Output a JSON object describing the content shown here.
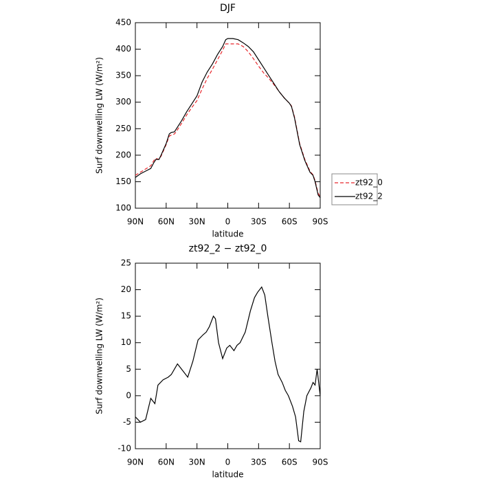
{
  "chart_data": [
    {
      "type": "line",
      "title": "DJF",
      "xlabel": "latitude",
      "ylabel": "Surf downwelling LW (W/m²)",
      "x": [
        90,
        85,
        80,
        75,
        72,
        70,
        67,
        65,
        60,
        57,
        55,
        52,
        50,
        45,
        40,
        35,
        30,
        25,
        20,
        15,
        10,
        5,
        2,
        0,
        -5,
        -10,
        -15,
        -20,
        -25,
        -30,
        -35,
        -40,
        -45,
        -50,
        -55,
        -60,
        -62,
        -65,
        -70,
        -75,
        -80,
        -83,
        -85,
        -88,
        -90
      ],
      "series": [
        {
          "name": "zt92_0",
          "color": "#e8262b",
          "linestyle": "dashed",
          "values": [
            162,
            168,
            174,
            180,
            190,
            194,
            192,
            198,
            220,
            236,
            238,
            240,
            245,
            260,
            276,
            290,
            303,
            325,
            345,
            362,
            380,
            398,
            410,
            410,
            410,
            410,
            405,
            395,
            382,
            368,
            355,
            345,
            333,
            320,
            308,
            298,
            293,
            272,
            222,
            192,
            170,
            163,
            152,
            128,
            122
          ]
        },
        {
          "name": "zt92_2",
          "color": "#000000",
          "linestyle": "solid",
          "values": [
            158,
            165,
            170,
            175,
            186,
            192,
            192,
            200,
            222,
            240,
            243,
            244,
            250,
            265,
            282,
            297,
            312,
            338,
            357,
            372,
            390,
            405,
            418,
            420,
            420,
            418,
            412,
            405,
            395,
            380,
            365,
            350,
            335,
            320,
            308,
            298,
            292,
            270,
            220,
            190,
            168,
            162,
            150,
            125,
            120
          ]
        }
      ],
      "xlim": [
        90,
        -90
      ],
      "xticks": [
        {
          "value": 90,
          "label": "90N"
        },
        {
          "value": 60,
          "label": "60N"
        },
        {
          "value": 30,
          "label": "30N"
        },
        0,
        {
          "value": -30,
          "label": "30S"
        },
        {
          "value": -60,
          "label": "60S"
        },
        {
          "value": -90,
          "label": "90S"
        }
      ],
      "ylim": [
        100,
        450
      ],
      "yticks": [
        100,
        150,
        200,
        250,
        300,
        350,
        400,
        450
      ],
      "legend": "right"
    },
    {
      "type": "line",
      "title": "zt92_2 − zt92_0",
      "xlabel": "latitude",
      "ylabel": "Surf downwelling LW (W/m²)",
      "x": [
        90,
        85,
        80,
        75,
        71,
        68,
        63,
        58,
        55,
        49,
        45,
        39,
        34,
        29,
        24,
        21,
        18,
        14,
        12,
        9,
        5,
        1,
        -2,
        -6,
        -9,
        -12,
        -17,
        -22,
        -26,
        -29,
        -33,
        -36,
        -39,
        -43,
        -46,
        -49,
        -53,
        -56,
        -59,
        -63,
        -66,
        -69,
        -71,
        -74,
        -77,
        -81,
        -83,
        -85,
        -87,
        -90
      ],
      "series": [
        {
          "color": "#000000",
          "linestyle": "solid",
          "values": [
            -4,
            -5,
            -4.5,
            -0.5,
            -1.5,
            2,
            3,
            3.5,
            4,
            6,
            5,
            3.5,
            6.5,
            10.5,
            11.5,
            12,
            13,
            15,
            14.5,
            10,
            7,
            9,
            9.5,
            8.5,
            9.5,
            10,
            12,
            16,
            18.5,
            19.5,
            20.5,
            19,
            15,
            10,
            6.5,
            4,
            2.5,
            1,
            0,
            -2,
            -4,
            -8.5,
            -8.7,
            -3,
            0,
            1.5,
            2.5,
            2,
            5,
            0
          ]
        }
      ],
      "xlim": [
        90,
        -90
      ],
      "xticks": [
        {
          "value": 90,
          "label": "90N"
        },
        {
          "value": 60,
          "label": "60N"
        },
        {
          "value": 30,
          "label": "30N"
        },
        0,
        {
          "value": -30,
          "label": "30S"
        },
        {
          "value": -60,
          "label": "60S"
        },
        {
          "value": -90,
          "label": "90S"
        }
      ],
      "ylim": [
        -10,
        25
      ],
      "yticks": [
        -10,
        -5,
        0,
        5,
        10,
        15,
        20,
        25
      ]
    }
  ]
}
